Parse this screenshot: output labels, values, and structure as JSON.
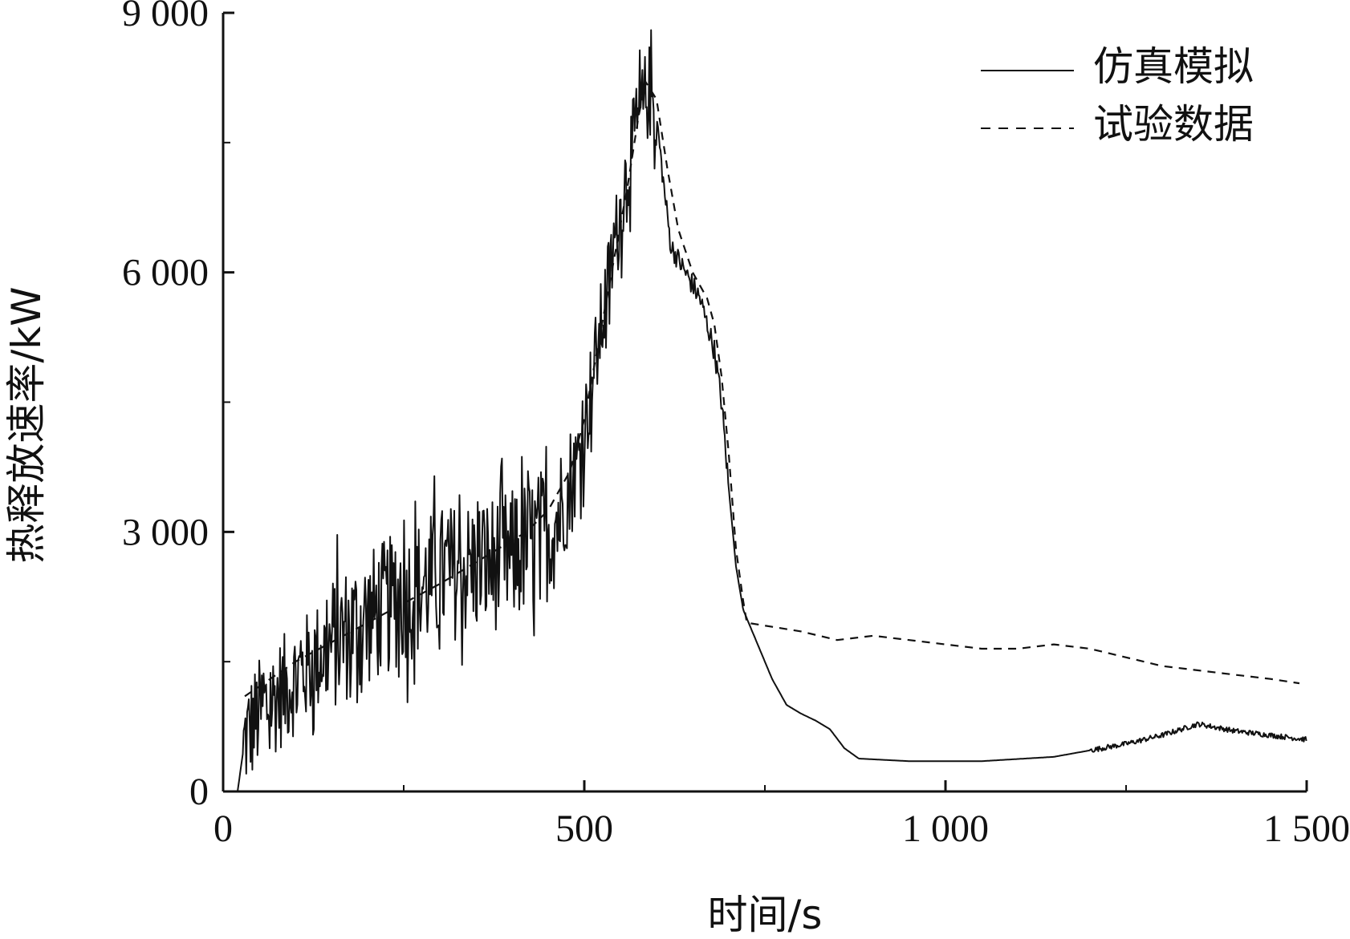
{
  "chart_data": {
    "type": "line",
    "xlabel": "时间/s",
    "ylabel": "热释放速率/kW",
    "xlim": [
      0,
      1500
    ],
    "ylim": [
      0,
      9000
    ],
    "x_ticks": [
      0,
      500,
      1000,
      1500
    ],
    "x_tick_labels": [
      "0",
      "500",
      "1 000",
      "1 500"
    ],
    "y_ticks": [
      0,
      3000,
      6000,
      9000
    ],
    "y_tick_labels": [
      "0",
      "3 000",
      "6 000",
      "9 000"
    ],
    "y_minor_ticks": [
      1500,
      4500,
      7500
    ],
    "x_minor_ticks": [
      250,
      750,
      1250
    ],
    "grid": false,
    "legend_position": "top-right",
    "series": [
      {
        "name": "仿真模拟",
        "style": "solid",
        "noisy_until": 600,
        "points": [
          [
            20,
            0
          ],
          [
            30,
            600
          ],
          [
            50,
            900
          ],
          [
            100,
            1300
          ],
          [
            150,
            1700
          ],
          [
            200,
            2000
          ],
          [
            250,
            2250
          ],
          [
            300,
            2500
          ],
          [
            350,
            2600
          ],
          [
            400,
            2700
          ],
          [
            450,
            3000
          ],
          [
            480,
            3400
          ],
          [
            500,
            4200
          ],
          [
            520,
            5200
          ],
          [
            540,
            6200
          ],
          [
            560,
            7200
          ],
          [
            580,
            7900
          ],
          [
            590,
            8100
          ],
          [
            600,
            7800
          ],
          [
            610,
            7000
          ],
          [
            620,
            6300
          ],
          [
            640,
            6000
          ],
          [
            660,
            5700
          ],
          [
            680,
            5100
          ],
          [
            690,
            4500
          ],
          [
            700,
            3500
          ],
          [
            710,
            2600
          ],
          [
            720,
            2100
          ],
          [
            740,
            1700
          ],
          [
            760,
            1300
          ],
          [
            780,
            1000
          ],
          [
            800,
            900
          ],
          [
            820,
            820
          ],
          [
            840,
            720
          ],
          [
            860,
            500
          ],
          [
            880,
            380
          ],
          [
            950,
            350
          ],
          [
            1050,
            350
          ],
          [
            1150,
            400
          ],
          [
            1250,
            550
          ],
          [
            1300,
            650
          ],
          [
            1350,
            780
          ],
          [
            1400,
            700
          ],
          [
            1450,
            650
          ],
          [
            1500,
            600
          ]
        ]
      },
      {
        "name": "试验数据",
        "style": "dashed",
        "points": [
          [
            30,
            1100
          ],
          [
            100,
            1500
          ],
          [
            200,
            1950
          ],
          [
            300,
            2400
          ],
          [
            380,
            2800
          ],
          [
            420,
            3000
          ],
          [
            450,
            3250
          ],
          [
            480,
            3700
          ],
          [
            500,
            4300
          ],
          [
            520,
            5200
          ],
          [
            540,
            6100
          ],
          [
            560,
            7000
          ],
          [
            575,
            7800
          ],
          [
            585,
            8200
          ],
          [
            600,
            8000
          ],
          [
            615,
            7200
          ],
          [
            630,
            6500
          ],
          [
            650,
            6000
          ],
          [
            670,
            5700
          ],
          [
            680,
            5400
          ],
          [
            690,
            4800
          ],
          [
            700,
            3900
          ],
          [
            710,
            2800
          ],
          [
            720,
            2200
          ],
          [
            725,
            1950
          ],
          [
            800,
            1850
          ],
          [
            850,
            1750
          ],
          [
            900,
            1800
          ],
          [
            950,
            1750
          ],
          [
            1000,
            1700
          ],
          [
            1050,
            1650
          ],
          [
            1100,
            1650
          ],
          [
            1150,
            1700
          ],
          [
            1200,
            1650
          ],
          [
            1250,
            1550
          ],
          [
            1300,
            1450
          ],
          [
            1350,
            1400
          ],
          [
            1400,
            1350
          ],
          [
            1450,
            1300
          ],
          [
            1490,
            1250
          ]
        ]
      }
    ]
  }
}
